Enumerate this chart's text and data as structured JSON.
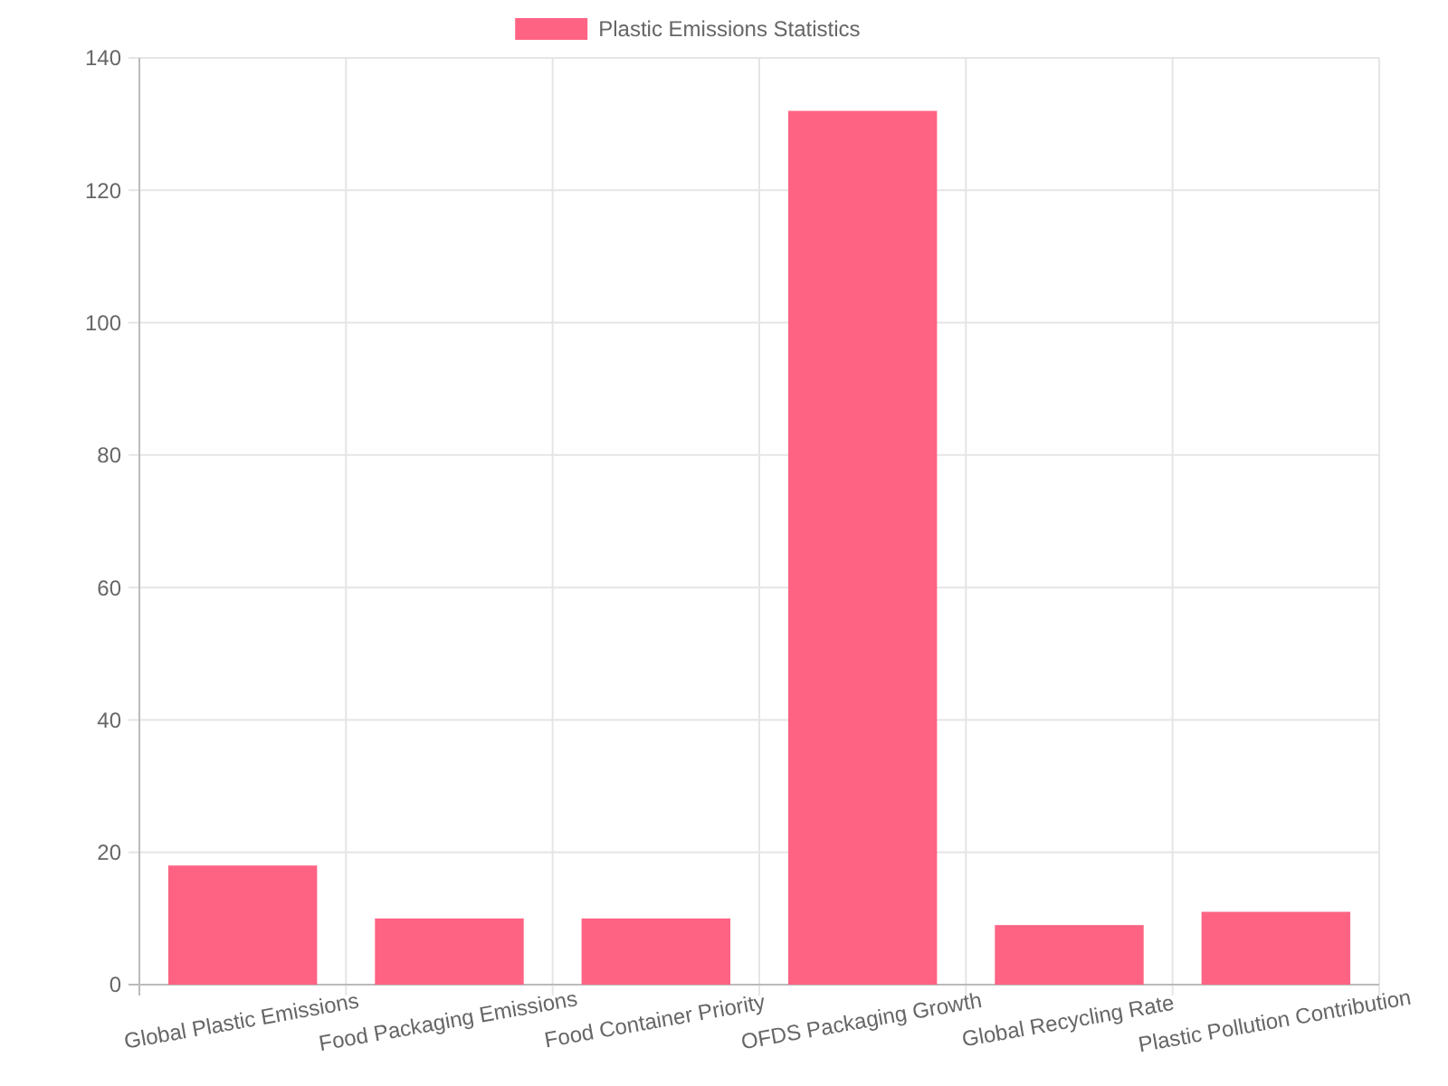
{
  "chart_data": {
    "type": "bar",
    "categories": [
      "Global Plastic Emissions",
      "Food Packaging Emissions",
      "Food Container Priority",
      "OFDS Packaging Growth",
      "Global Recycling Rate",
      "Plastic Pollution Contribution"
    ],
    "series": [
      {
        "name": "Plastic Emissions Statistics",
        "color": "#ff6384",
        "values": [
          18,
          10,
          10,
          132,
          9,
          11
        ]
      }
    ],
    "ylim": [
      0,
      140
    ],
    "yticks": [
      0,
      20,
      40,
      60,
      80,
      100,
      120,
      140
    ],
    "grid": true,
    "legend": "top"
  }
}
